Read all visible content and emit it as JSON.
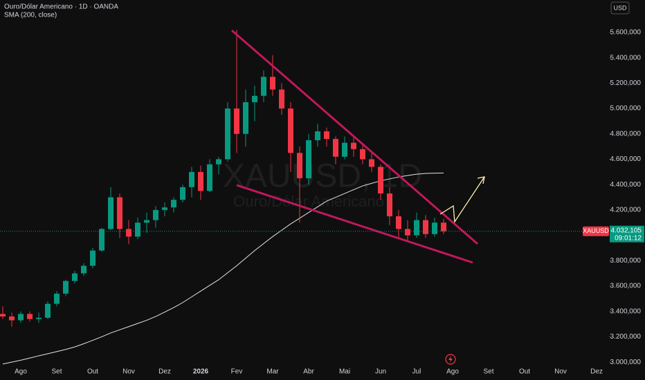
{
  "chart_data": {
    "type": "candlestick",
    "title": "Ouro/Dólar Americano · 1D · OANDA",
    "currency": "USD",
    "watermark": {
      "symbol": "XAUUSD, 1D",
      "name": "Ouro/Dólar Americano"
    },
    "categories": [
      null,
      null,
      "Ago",
      null,
      null,
      null,
      "Set",
      null,
      null,
      null,
      "Out",
      null,
      null,
      null,
      "Nov",
      null,
      null,
      null,
      "Dez",
      null,
      null,
      null,
      "2026",
      null,
      null,
      null,
      "Fev",
      null,
      null,
      null,
      "Mar",
      null,
      null,
      null,
      "Abr",
      null,
      null,
      null,
      "Mai",
      null,
      null,
      null,
      "Jun",
      null,
      null,
      null,
      "Jul",
      null,
      null,
      null,
      "Ago",
      null,
      null,
      null,
      "Set",
      null,
      null,
      null,
      "Out",
      null,
      null,
      null,
      "Nov",
      null,
      null,
      null,
      "Dez",
      null
    ],
    "series": [
      {
        "name": "XAUUSD",
        "type": "candlestick",
        "up_color": "#089981",
        "down_color": "#f23645",
        "open": [
          3380,
          3360,
          3330,
          3380,
          3340,
          3350,
          3460,
          3540,
          3640,
          3700,
          3760,
          3880,
          4050,
          4300,
          4050,
          3990,
          4100,
          4120,
          4200,
          4220,
          4280,
          4380,
          4500,
          4350,
          4560,
          4600,
          5000,
          4800,
          5050,
          5100,
          5250,
          5150,
          5000,
          4650,
          4450,
          4750,
          4820,
          4760,
          4620,
          4730,
          4680,
          4600,
          4540,
          4330,
          4150,
          4050,
          4000,
          4120,
          4010,
          4100,
          null,
          null,
          null,
          null,
          null,
          null,
          null,
          null,
          null,
          null,
          null,
          null,
          null,
          null,
          null,
          null,
          null,
          null
        ],
        "high": [
          3440,
          3390,
          3400,
          3400,
          3390,
          3480,
          3560,
          3650,
          3720,
          3780,
          3900,
          4060,
          4380,
          4330,
          4120,
          4140,
          4180,
          4230,
          4260,
          4300,
          4400,
          4540,
          4550,
          4600,
          4620,
          5050,
          5620,
          5150,
          5180,
          5300,
          5420,
          5200,
          5050,
          4700,
          4800,
          4880,
          4850,
          4780,
          4780,
          4770,
          4720,
          4650,
          4560,
          4380,
          4200,
          4120,
          4180,
          4160,
          4140,
          4130,
          null,
          null,
          null,
          null,
          null,
          null,
          null,
          null,
          null,
          null,
          null,
          null,
          null,
          null,
          null,
          null,
          null,
          null
        ],
        "low": [
          3340,
          3280,
          3310,
          3320,
          3310,
          3340,
          3440,
          3520,
          3620,
          3680,
          3740,
          3870,
          4040,
          3980,
          3930,
          3970,
          4020,
          4060,
          4150,
          4180,
          4260,
          4300,
          4280,
          4340,
          4480,
          4580,
          4650,
          4700,
          4900,
          5050,
          5100,
          4950,
          4500,
          4100,
          4400,
          4700,
          4700,
          4560,
          4600,
          4620,
          4560,
          4500,
          4280,
          4080,
          3980,
          3950,
          3980,
          3980,
          3990,
          4010,
          null,
          null,
          null,
          null,
          null,
          null,
          null,
          null,
          null,
          null,
          null,
          null,
          null,
          null,
          null,
          null,
          null,
          null
        ],
        "close": [
          3360,
          3330,
          3380,
          3340,
          3350,
          3460,
          3540,
          3640,
          3700,
          3760,
          3880,
          4050,
          4300,
          4050,
          3990,
          4100,
          4120,
          4200,
          4220,
          4280,
          4380,
          4500,
          4350,
          4560,
          4600,
          5000,
          4800,
          5050,
          5100,
          5250,
          5150,
          5000,
          4650,
          4450,
          4750,
          4820,
          4760,
          4620,
          4730,
          4680,
          4600,
          4540,
          4330,
          4150,
          4050,
          4000,
          4120,
          4010,
          4100,
          4032.105,
          null,
          null,
          null,
          null,
          null,
          null,
          null,
          null,
          null,
          null,
          null,
          null,
          null,
          null,
          null,
          null,
          null,
          null
        ]
      },
      {
        "name": "SMA (200, close)",
        "type": "line",
        "color": "#e6e6e6",
        "values": [
          2985,
          3000,
          3015,
          3032,
          3050,
          3066,
          3083,
          3100,
          3120,
          3145,
          3172,
          3200,
          3230,
          3255,
          3280,
          3305,
          3330,
          3360,
          3395,
          3430,
          3470,
          3515,
          3560,
          3605,
          3650,
          3705,
          3760,
          3820,
          3880,
          3935,
          3990,
          4040,
          4090,
          4135,
          4180,
          4225,
          4270,
          4300,
          4330,
          4360,
          4390,
          4410,
          4430,
          4445,
          4460,
          4472,
          4482,
          4488,
          4490,
          4492,
          null,
          null,
          null,
          null,
          null,
          null,
          null,
          null,
          null,
          null,
          null,
          null,
          null,
          null,
          null,
          null,
          null,
          null
        ]
      }
    ],
    "ylim": [
      2968,
      5856
    ],
    "yticks": [
      {
        "value": 3000,
        "label": "3.000,000"
      },
      {
        "value": 3200,
        "label": "3.200,000"
      },
      {
        "value": 3400,
        "label": "3.400,000"
      },
      {
        "value": 3600,
        "label": "3.600,000"
      },
      {
        "value": 3800,
        "label": "3.800,000"
      },
      {
        "value": 4200,
        "label": "4.200,000"
      },
      {
        "value": 4400,
        "label": "4.400,000"
      },
      {
        "value": 4600,
        "label": "4.600,000"
      },
      {
        "value": 4800,
        "label": "4.800,000"
      },
      {
        "value": 5000,
        "label": "5.000,000"
      },
      {
        "value": 5200,
        "label": "5.200,000"
      },
      {
        "value": 5400,
        "label": "5.400,000"
      },
      {
        "value": 5600,
        "label": "5.600,000"
      }
    ],
    "last_price": {
      "value": 4032.105,
      "label": "4.032,105"
    },
    "countdown": "09:01:12"
  }
}
